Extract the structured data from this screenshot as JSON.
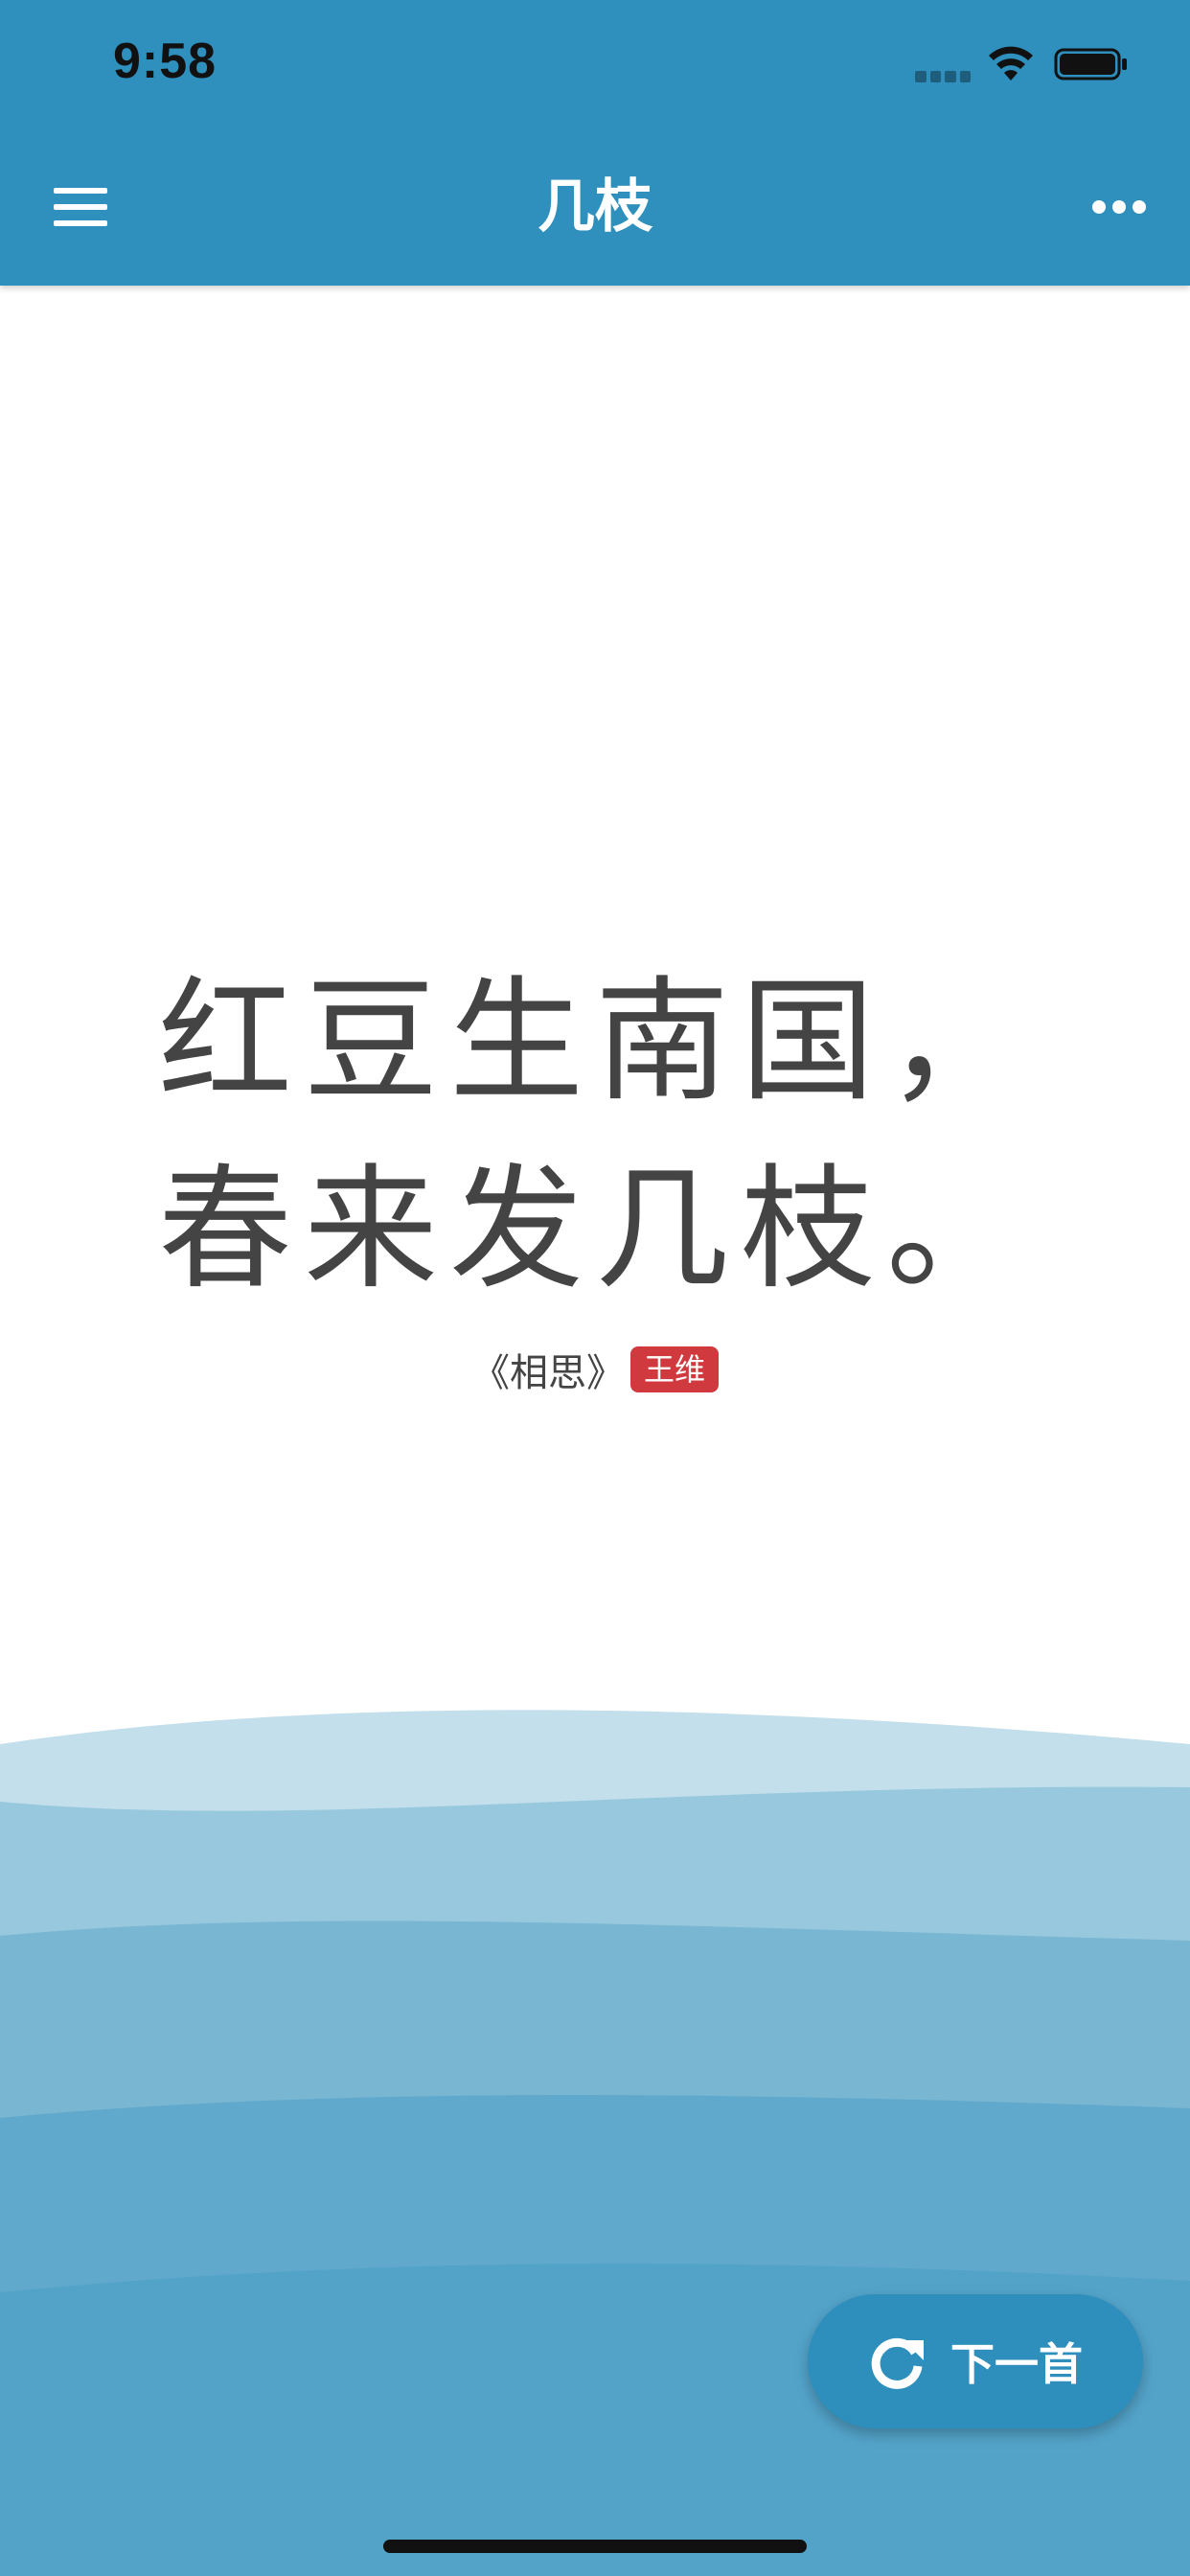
{
  "status_bar": {
    "time": "9:58"
  },
  "nav": {
    "title": "几枝",
    "menu_icon": "hamburger-menu-icon",
    "more_icon": "more-horizontal-icon"
  },
  "poem": {
    "lines": [
      "红豆生南国，",
      "春来发几枝。"
    ],
    "title": "《相思》",
    "author": "王维"
  },
  "next_button": {
    "label": "下一首",
    "icon": "refresh-icon"
  },
  "colors": {
    "primary": "#2f8fbd",
    "author_badge": "#d03a3f",
    "text": "#444444"
  }
}
